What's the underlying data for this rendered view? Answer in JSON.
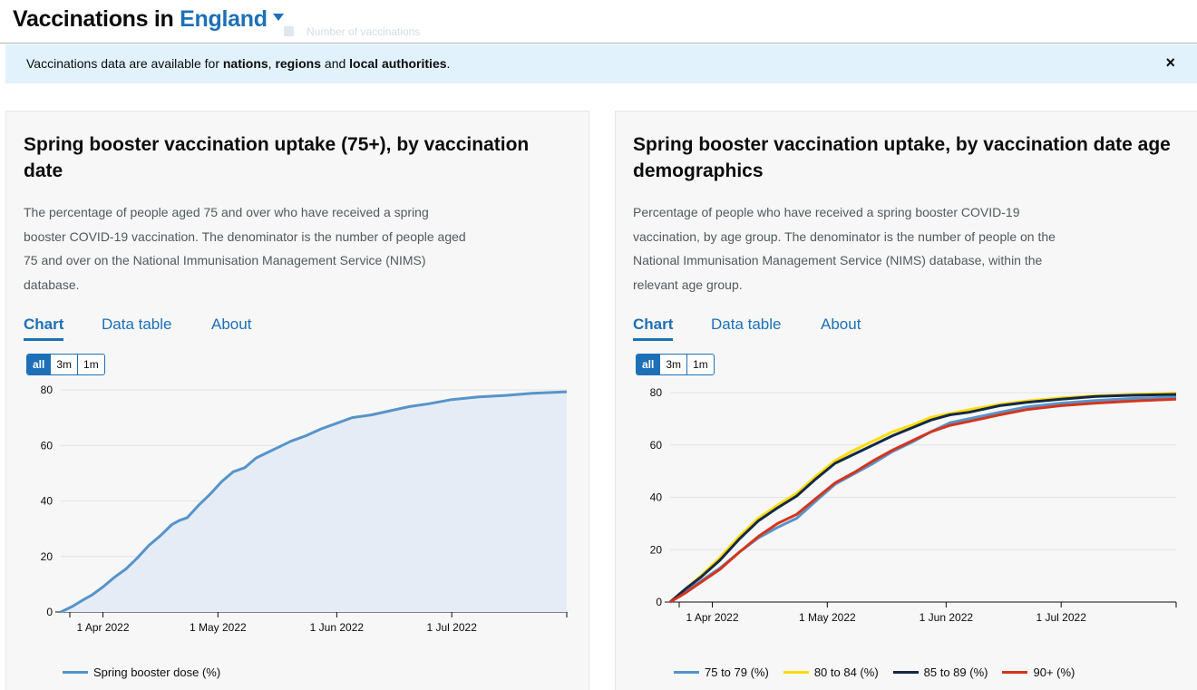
{
  "header": {
    "title_prefix": "Vaccinations in",
    "area": "England",
    "ghost_text": "Number of vaccinations"
  },
  "banner": {
    "text_1": "Vaccinations data are available for ",
    "link_nations": "nations",
    "text_2": ", ",
    "link_regions": "regions",
    "text_3": " and ",
    "link_local": "local authorities",
    "text_4": ".",
    "close": "×"
  },
  "cards": [
    {
      "title": "Spring booster vaccination uptake (75+), by vaccination date",
      "description": "The percentage of people aged 75 and over who have received a spring booster COVID-19 vaccination. The denominator is the number of people aged 75 and over on the National Immunisation Management Service (NIMS) database.",
      "tabs": [
        "Chart",
        "Data table",
        "About"
      ],
      "ranges": [
        "all",
        "3m",
        "1m"
      ]
    },
    {
      "title": "Spring booster vaccination uptake, by vaccination date age demographics",
      "description": "Percentage of people who have received a spring booster COVID-19 vaccination, by age group. The denominator is the number of people on the National Immunisation Management Service (NIMS) database, within the relevant age group.",
      "tabs": [
        "Chart",
        "Data table",
        "About"
      ],
      "ranges": [
        "all",
        "3m",
        "1m"
      ]
    }
  ],
  "colors": {
    "link": "#1d70b8",
    "series_blue": "#5694ca",
    "series_yellow": "#ffdd00",
    "series_navy": "#12284a",
    "series_red": "#d4351c"
  },
  "chart_data": [
    {
      "type": "area",
      "x_ticks": [
        "1 Apr 2022",
        "1 May 2022",
        "1 Jun 2022",
        "1 Jul 2022"
      ],
      "ylim": [
        0,
        80
      ],
      "y_ticks": [
        0,
        20,
        40,
        60,
        80
      ],
      "grid": true,
      "legend_position": "bottom",
      "series": [
        {
          "name": "Spring booster dose (%)",
          "points": [
            [
              "2022-03-21",
              0
            ],
            [
              "2022-03-24",
              2
            ],
            [
              "2022-03-27",
              4.5
            ],
            [
              "2022-03-29",
              6
            ],
            [
              "2022-04-01",
              9
            ],
            [
              "2022-04-04",
              12.5
            ],
            [
              "2022-04-07",
              15.5
            ],
            [
              "2022-04-10",
              19.5
            ],
            [
              "2022-04-13",
              24
            ],
            [
              "2022-04-16",
              27.5
            ],
            [
              "2022-04-19",
              31.5
            ],
            [
              "2022-04-21",
              33
            ],
            [
              "2022-04-23",
              34
            ],
            [
              "2022-04-26",
              38.5
            ],
            [
              "2022-04-29",
              42.5
            ],
            [
              "2022-05-02",
              47
            ],
            [
              "2022-05-05",
              50.5
            ],
            [
              "2022-05-08",
              52
            ],
            [
              "2022-05-11",
              55.5
            ],
            [
              "2022-05-14",
              57.5
            ],
            [
              "2022-05-17",
              59.5
            ],
            [
              "2022-05-20",
              61.5
            ],
            [
              "2022-05-24",
              63.5
            ],
            [
              "2022-05-28",
              66
            ],
            [
              "2022-06-01",
              68
            ],
            [
              "2022-06-05",
              70
            ],
            [
              "2022-06-10",
              71
            ],
            [
              "2022-06-15",
              72.5
            ],
            [
              "2022-06-20",
              74
            ],
            [
              "2022-06-25",
              75
            ],
            [
              "2022-07-01",
              76.5
            ],
            [
              "2022-07-08",
              77.5
            ],
            [
              "2022-07-15",
              78
            ],
            [
              "2022-07-22",
              78.8
            ],
            [
              "2022-07-31",
              79.3
            ]
          ]
        }
      ]
    },
    {
      "type": "line",
      "x_ticks": [
        "1 Apr 2022",
        "1 May 2022",
        "1 Jun 2022",
        "1 Jul 2022"
      ],
      "ylim": [
        0,
        80
      ],
      "y_ticks": [
        0,
        20,
        40,
        60,
        80
      ],
      "grid": true,
      "legend_position": "bottom",
      "series": [
        {
          "name": "75 to 79 (%)",
          "color": "#5694ca",
          "points": [
            [
              "2022-03-21",
              0
            ],
            [
              "2022-03-25",
              4
            ],
            [
              "2022-03-29",
              8
            ],
            [
              "2022-04-03",
              13
            ],
            [
              "2022-04-08",
              19
            ],
            [
              "2022-04-13",
              24.5
            ],
            [
              "2022-04-18",
              28.5
            ],
            [
              "2022-04-23",
              32
            ],
            [
              "2022-04-28",
              38.5
            ],
            [
              "2022-05-03",
              45
            ],
            [
              "2022-05-08",
              49
            ],
            [
              "2022-05-13",
              53
            ],
            [
              "2022-05-18",
              57.5
            ],
            [
              "2022-05-23",
              61
            ],
            [
              "2022-05-28",
              65
            ],
            [
              "2022-06-02",
              68.5
            ],
            [
              "2022-06-07",
              70
            ],
            [
              "2022-06-15",
              72.5
            ],
            [
              "2022-06-22",
              74.5
            ],
            [
              "2022-07-01",
              76
            ],
            [
              "2022-07-10",
              77
            ],
            [
              "2022-07-20",
              77.8
            ],
            [
              "2022-07-31",
              78.3
            ]
          ]
        },
        {
          "name": "80 to 84 (%)",
          "color": "#ffdd00",
          "points": [
            [
              "2022-03-21",
              0
            ],
            [
              "2022-03-25",
              5
            ],
            [
              "2022-03-29",
              10
            ],
            [
              "2022-04-03",
              17
            ],
            [
              "2022-04-08",
              25
            ],
            [
              "2022-04-13",
              32
            ],
            [
              "2022-04-18",
              37
            ],
            [
              "2022-04-23",
              41.5
            ],
            [
              "2022-04-28",
              48
            ],
            [
              "2022-05-03",
              54
            ],
            [
              "2022-05-08",
              58
            ],
            [
              "2022-05-13",
              61.5
            ],
            [
              "2022-05-18",
              65
            ],
            [
              "2022-05-23",
              67.5
            ],
            [
              "2022-05-28",
              70.5
            ],
            [
              "2022-06-02",
              72
            ],
            [
              "2022-06-07",
              73.5
            ],
            [
              "2022-06-15",
              75.5
            ],
            [
              "2022-06-22",
              76.8
            ],
            [
              "2022-07-01",
              78
            ],
            [
              "2022-07-10",
              78.8
            ],
            [
              "2022-07-20",
              79.3
            ],
            [
              "2022-07-31",
              79.8
            ]
          ]
        },
        {
          "name": "85 to 89 (%)",
          "color": "#12284a",
          "points": [
            [
              "2022-03-21",
              0
            ],
            [
              "2022-03-25",
              5
            ],
            [
              "2022-03-29",
              9.5
            ],
            [
              "2022-04-03",
              16
            ],
            [
              "2022-04-08",
              24
            ],
            [
              "2022-04-13",
              31
            ],
            [
              "2022-04-18",
              36
            ],
            [
              "2022-04-23",
              40.5
            ],
            [
              "2022-04-28",
              47
            ],
            [
              "2022-05-03",
              53
            ],
            [
              "2022-05-08",
              56.5
            ],
            [
              "2022-05-13",
              60
            ],
            [
              "2022-05-18",
              63.5
            ],
            [
              "2022-05-23",
              66.5
            ],
            [
              "2022-05-28",
              69.5
            ],
            [
              "2022-06-02",
              71.5
            ],
            [
              "2022-06-07",
              72.5
            ],
            [
              "2022-06-15",
              75
            ],
            [
              "2022-06-22",
              76.3
            ],
            [
              "2022-07-01",
              77.5
            ],
            [
              "2022-07-10",
              78.5
            ],
            [
              "2022-07-20",
              79
            ],
            [
              "2022-07-31",
              79.3
            ]
          ]
        },
        {
          "name": "90+ (%)",
          "color": "#d4351c",
          "points": [
            [
              "2022-03-21",
              0
            ],
            [
              "2022-03-25",
              3.5
            ],
            [
              "2022-03-29",
              7.5
            ],
            [
              "2022-04-03",
              12.5
            ],
            [
              "2022-04-08",
              19
            ],
            [
              "2022-04-13",
              25
            ],
            [
              "2022-04-18",
              30
            ],
            [
              "2022-04-23",
              33.5
            ],
            [
              "2022-04-28",
              39.5
            ],
            [
              "2022-05-03",
              45.5
            ],
            [
              "2022-05-08",
              49.5
            ],
            [
              "2022-05-13",
              54
            ],
            [
              "2022-05-18",
              58
            ],
            [
              "2022-05-23",
              61.5
            ],
            [
              "2022-05-28",
              65
            ],
            [
              "2022-06-02",
              67.5
            ],
            [
              "2022-06-07",
              69
            ],
            [
              "2022-06-15",
              71.5
            ],
            [
              "2022-06-22",
              73.5
            ],
            [
              "2022-07-01",
              75
            ],
            [
              "2022-07-10",
              76
            ],
            [
              "2022-07-20",
              76.8
            ],
            [
              "2022-07-31",
              77.5
            ]
          ]
        }
      ]
    }
  ]
}
